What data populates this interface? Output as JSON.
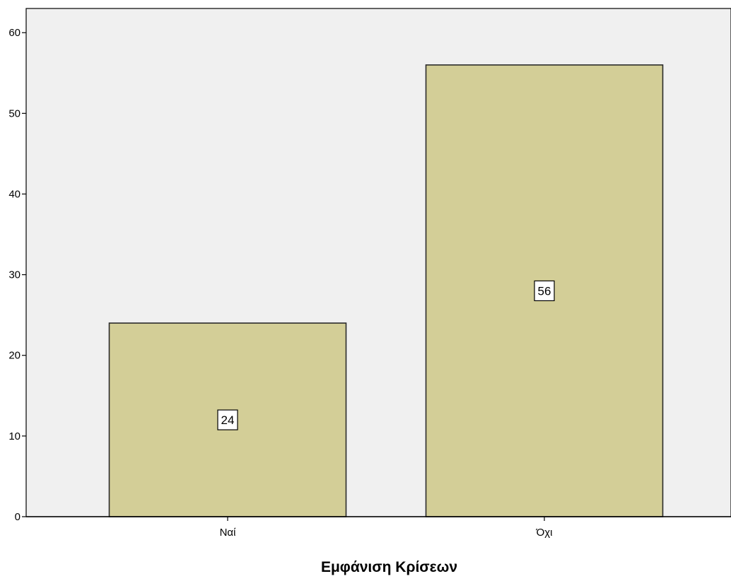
{
  "chart_data": {
    "type": "bar",
    "categories": [
      "Ναί",
      "Όχι"
    ],
    "values": [
      24,
      56
    ],
    "data_labels": [
      "24",
      "56"
    ],
    "title": "",
    "xlabel": "Εμφάνιση Κρίσεων",
    "ylabel": "",
    "ylim": [
      0,
      63
    ],
    "yticks": [
      0,
      10,
      20,
      30,
      40,
      50,
      60
    ],
    "ytick_labels": [
      "0",
      "10",
      "20",
      "30",
      "40",
      "50",
      "60"
    ],
    "grid": false,
    "legend": "none",
    "colors": {
      "plot_background": "#f0f0f0",
      "bar_fill": "#d3ce97",
      "bar_stroke": "#2b2b2b",
      "axis": "#000000",
      "label_box_fill": "#ffffff"
    }
  }
}
